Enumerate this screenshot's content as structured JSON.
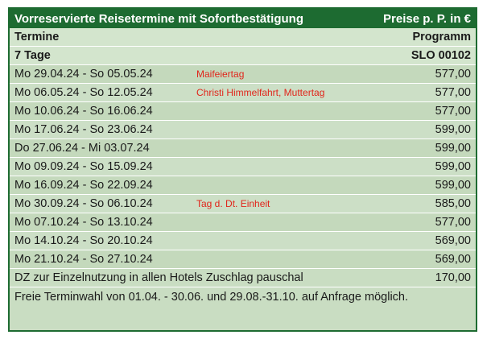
{
  "header": {
    "title": "Vorreservierte Reisetermine mit Sofortbestätigung",
    "price_label": "Preise p. P. in €"
  },
  "columns": {
    "left": "Termine",
    "right": "Programm"
  },
  "program": {
    "duration": "7 Tage",
    "code": "SLO 00102"
  },
  "rows": [
    {
      "dates": "Mo 29.04.24 - So  05.05.24",
      "note": "Maifeiertag",
      "price": "577,00"
    },
    {
      "dates": "Mo 06.05.24 - So  12.05.24",
      "note": "Christi Himmelfahrt, Muttertag",
      "price": "577,00"
    },
    {
      "dates": "Mo 10.06.24 - So  16.06.24",
      "note": "",
      "price": "577,00"
    },
    {
      "dates": "Mo 17.06.24 - So  23.06.24",
      "note": "",
      "price": "599,00"
    },
    {
      "dates": "Do  27.06.24 - Mi  03.07.24",
      "note": "",
      "price": "599,00"
    },
    {
      "dates": "Mo 09.09.24 - So  15.09.24",
      "note": "",
      "price": "599,00"
    },
    {
      "dates": "Mo 16.09.24 - So  22.09.24",
      "note": "",
      "price": "599,00"
    },
    {
      "dates": "Mo 30.09.24 - So  06.10.24",
      "note": "Tag d. Dt. Einheit",
      "price": "585,00"
    },
    {
      "dates": "Mo 07.10.24 - So  13.10.24",
      "note": "",
      "price": "577,00"
    },
    {
      "dates": "Mo 14.10.24 - So  20.10.24",
      "note": "",
      "price": "569,00"
    },
    {
      "dates": "Mo 21.10.24 - So  27.10.24",
      "note": "",
      "price": "569,00"
    }
  ],
  "surcharge": {
    "label": "DZ zur Einzelnutzung in allen Hotels Zuschlag pauschal",
    "price": "170,00"
  },
  "footnote": "Freie Terminwahl von 01.04. - 30.06. und 29.08.-31.10. auf Anfrage möglich.",
  "colors": {
    "header_bg": "#1d6b31",
    "row_bg": "#c9ddc2",
    "note_text": "#e1251b"
  }
}
